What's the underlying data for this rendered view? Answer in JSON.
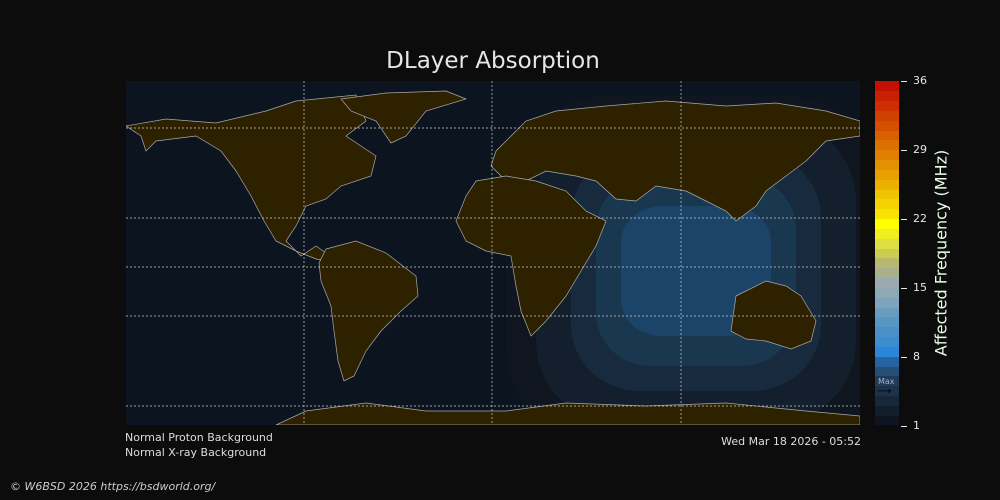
{
  "title": "DLayer Absorption",
  "colorbar": {
    "label": "Affected Frequency (MHz)",
    "ticks": [
      "36",
      "29",
      "22",
      "15",
      "8",
      "1"
    ],
    "min": 1,
    "max": 36,
    "max_marker_label": "Max",
    "max_marker_value": 4,
    "colors": [
      "#0e1420",
      "#131e2c",
      "#17283a",
      "#1b3248",
      "#1f3d58",
      "#225077",
      "#2663a0",
      "#2a86d8",
      "#3a8ed0",
      "#4a90c8",
      "#5896c4",
      "#6a9cc0",
      "#7ea3ba",
      "#8ea8b4",
      "#9aaab0",
      "#a8b08c",
      "#b8b870",
      "#cccc50",
      "#dede40",
      "#eeee20",
      "#ffff00",
      "#f8e400",
      "#f4d400",
      "#f0c400",
      "#ecb000",
      "#e8a000",
      "#e49000",
      "#e08000",
      "#dc7000",
      "#d86000",
      "#d45000",
      "#d04000",
      "#cc3000",
      "#c82000",
      "#c41000"
    ]
  },
  "map": {
    "ocean_color": "#0c1420",
    "land_color": "#2e2100",
    "absorption_colors": [
      "#10161f",
      "#131f2c",
      "#172a3e",
      "#1a3750",
      "#1c4468"
    ]
  },
  "status": {
    "proton": "Normal Proton Background",
    "xray": "Normal X-ray Background",
    "timestamp": "Wed Mar 18 2026 - 05:52"
  },
  "footer": "© W6BSD 2026 https://bsdworld.org/"
}
